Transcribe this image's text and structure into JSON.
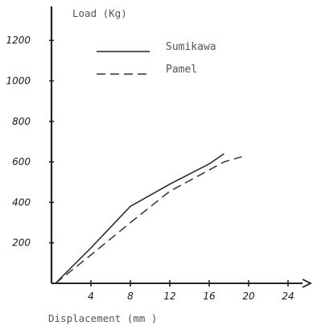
{
  "chart_data": {
    "type": "line",
    "title": "",
    "xlabel": "Displacement (mm )",
    "ylabel": "Load (Kg)",
    "xlim": [
      0,
      26
    ],
    "ylim": [
      0,
      1300
    ],
    "x_ticks": [
      {
        "value": 4,
        "label": "4"
      },
      {
        "value": 8,
        "label": "8"
      },
      {
        "value": 12,
        "label": "12"
      },
      {
        "value": 16,
        "label": "16"
      },
      {
        "value": 20,
        "label": "20"
      },
      {
        "value": 24,
        "label": "24"
      }
    ],
    "y_ticks": [
      {
        "value": 200,
        "label": "200"
      },
      {
        "value": 400,
        "label": "400"
      },
      {
        "value": 600,
        "label": "600"
      },
      {
        "value": 800,
        "label": "800"
      },
      {
        "value": 1000,
        "label": "1000"
      },
      {
        "value": 1200,
        "label": "1200"
      }
    ],
    "grid": false,
    "legend": "top-center",
    "series": [
      {
        "name": "Sumikawa",
        "style": "solid",
        "color": "#222222",
        "x": [
          0.4,
          4,
          8,
          12,
          16,
          17.5
        ],
        "y": [
          0,
          175,
          380,
          490,
          590,
          640
        ]
      },
      {
        "name": "Pamel",
        "style": "dashed",
        "color": "#333333",
        "x": [
          0.4,
          4,
          8,
          12,
          16,
          17.5,
          19.3
        ],
        "y": [
          0,
          140,
          300,
          455,
          560,
          600,
          625
        ]
      }
    ]
  }
}
